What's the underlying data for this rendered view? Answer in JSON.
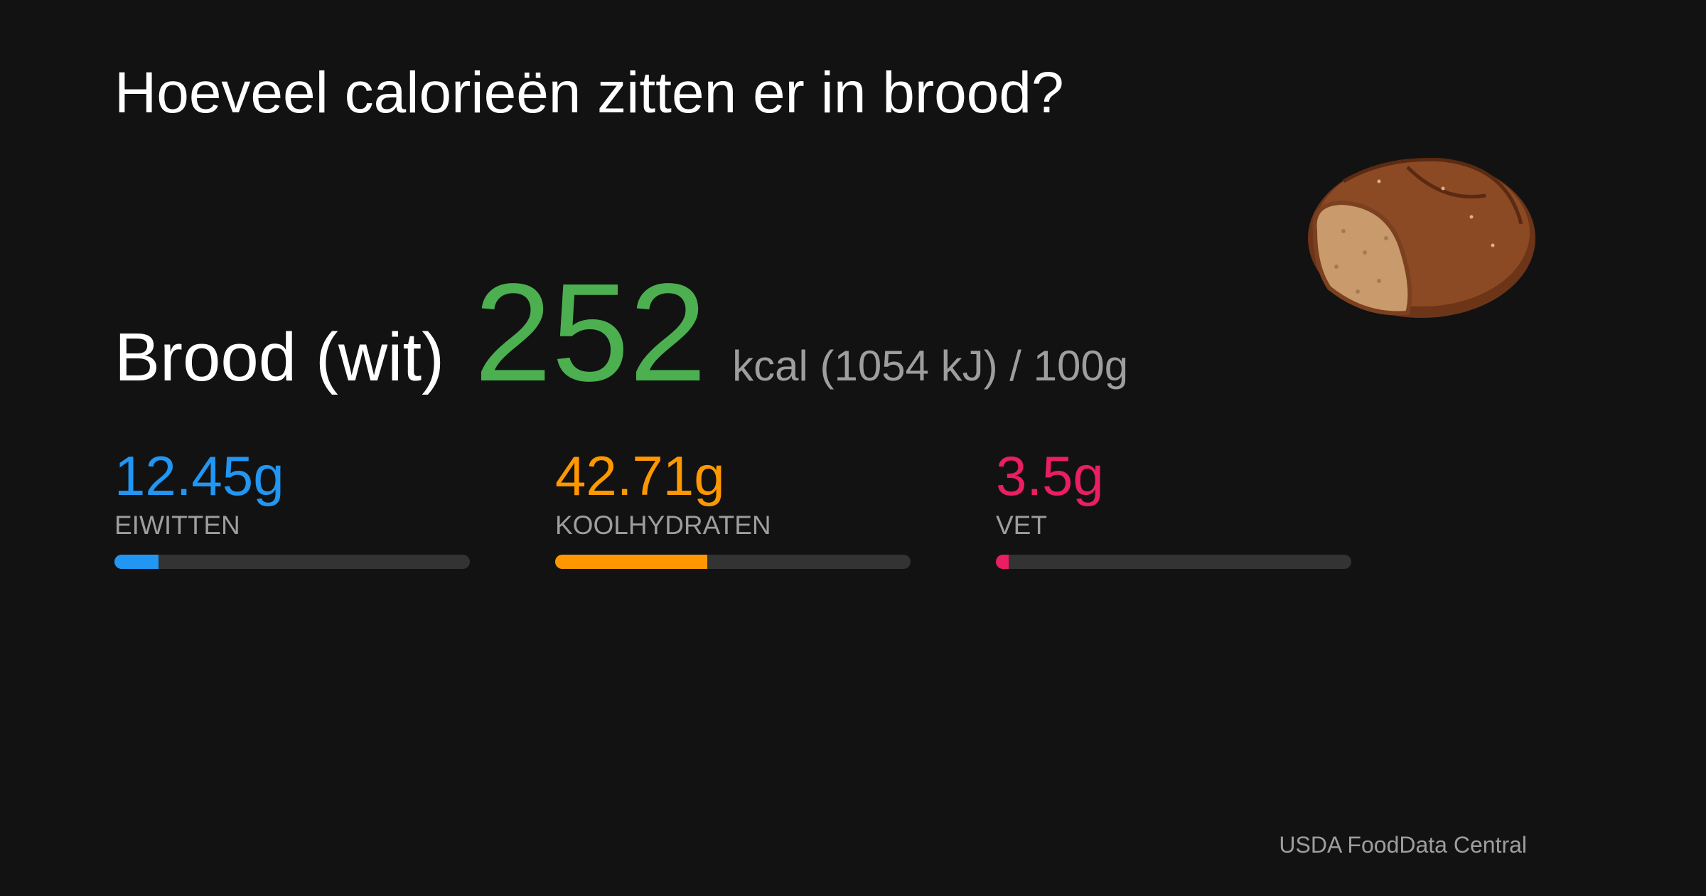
{
  "header": {
    "title": "Hoeveel calorieën zitten er in brood?"
  },
  "food": {
    "name": "Brood (wit)",
    "kcal": 252,
    "unit_text": "kcal (1054 kJ) / 100g"
  },
  "bar_range": [
    0,
    100
  ],
  "macros": [
    {
      "value": 12.45,
      "value_label": "12.45g",
      "label": "EIWITTEN",
      "color": "#2196f3"
    },
    {
      "value": 42.71,
      "value_label": "42.71g",
      "label": "KOOLHYDRATEN",
      "color": "#ff9800"
    },
    {
      "value": 3.5,
      "value_label": "3.5g",
      "label": "VET",
      "color": "#e91e63"
    }
  ],
  "source": "USDA FoodData Central"
}
